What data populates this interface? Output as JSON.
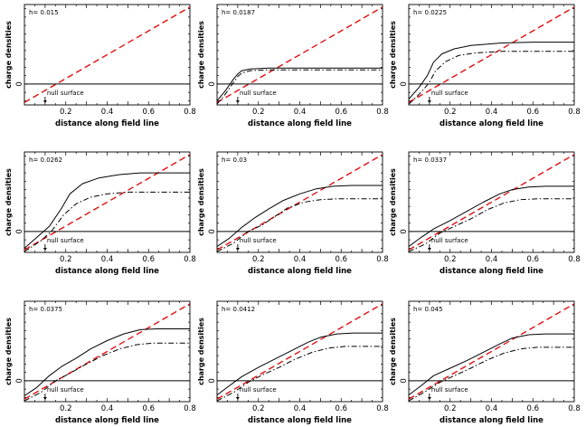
{
  "chart_data": [
    {
      "type": "line",
      "title": "",
      "annotation": "h= 0.015",
      "xlabel": "distance along field line",
      "ylabel": "charge densities",
      "xlim": [
        0,
        0.8
      ],
      "ylim": [
        -0.25,
        0.95
      ],
      "xticks": [
        "0.2",
        "0.4",
        "0.6",
        "0.8"
      ],
      "yticks": [
        "0"
      ],
      "null_surface_label": "null surface",
      "null_surface_x": 0.1,
      "series": [
        {
          "style": "dashed-red",
          "x": [
            0,
            0.8
          ],
          "y": [
            -0.22,
            0.92
          ]
        },
        {
          "style": "solid-black",
          "x": [
            0,
            0.8
          ],
          "y": [
            0,
            0
          ]
        }
      ]
    },
    {
      "type": "line",
      "title": "",
      "annotation": "h= 0.0187",
      "xlabel": "distance along field line",
      "ylabel": "charge densities",
      "xlim": [
        0,
        0.8
      ],
      "ylim": [
        -0.25,
        0.95
      ],
      "xticks": [
        "0.2",
        "0.4",
        "0.6",
        "0.8"
      ],
      "yticks": [
        "0"
      ],
      "null_surface_label": "null surface",
      "null_surface_x": 0.1,
      "series": [
        {
          "style": "dashed-red",
          "x": [
            0,
            0.8
          ],
          "y": [
            -0.22,
            0.92
          ]
        },
        {
          "style": "solid-black",
          "x": [
            0,
            0.8
          ],
          "y": [
            0,
            0
          ]
        },
        {
          "style": "solid-black",
          "x": [
            0,
            0.04,
            0.08,
            0.1,
            0.12,
            0.16,
            0.25,
            0.4,
            0.6,
            0.8
          ],
          "y": [
            -0.2,
            -0.08,
            0.06,
            0.12,
            0.16,
            0.18,
            0.19,
            0.19,
            0.19,
            0.19
          ]
        },
        {
          "style": "dashdot-black",
          "x": [
            0,
            0.04,
            0.08,
            0.1,
            0.12,
            0.16,
            0.25,
            0.4,
            0.6,
            0.8
          ],
          "y": [
            -0.24,
            -0.12,
            0.02,
            0.09,
            0.13,
            0.16,
            0.17,
            0.17,
            0.17,
            0.17
          ]
        }
      ]
    },
    {
      "type": "line",
      "title": "",
      "annotation": "h= 0.0225",
      "xlabel": "distance along field line",
      "ylabel": "charge densities",
      "xlim": [
        0,
        0.8
      ],
      "ylim": [
        -0.25,
        0.95
      ],
      "xticks": [
        "0.2",
        "0.4",
        "0.6",
        "0.8"
      ],
      "yticks": [
        "0"
      ],
      "null_surface_label": "null surface",
      "null_surface_x": 0.1,
      "series": [
        {
          "style": "dashed-red",
          "x": [
            0,
            0.8
          ],
          "y": [
            -0.22,
            0.92
          ]
        },
        {
          "style": "solid-black",
          "x": [
            0,
            0.8
          ],
          "y": [
            0,
            0
          ]
        },
        {
          "style": "solid-black",
          "x": [
            0,
            0.05,
            0.09,
            0.12,
            0.16,
            0.22,
            0.3,
            0.45,
            0.6,
            0.8
          ],
          "y": [
            -0.18,
            -0.04,
            0.1,
            0.26,
            0.36,
            0.42,
            0.46,
            0.49,
            0.5,
            0.5
          ]
        },
        {
          "style": "dashdot-black",
          "x": [
            0,
            0.06,
            0.1,
            0.13,
            0.18,
            0.24,
            0.32,
            0.45,
            0.6,
            0.8
          ],
          "y": [
            -0.24,
            -0.1,
            0.02,
            0.16,
            0.27,
            0.34,
            0.37,
            0.39,
            0.39,
            0.39
          ]
        }
      ]
    },
    {
      "type": "line",
      "title": "",
      "annotation": "h= 0.0262",
      "xlabel": "distance along field line",
      "ylabel": "charge densities",
      "xlim": [
        0,
        0.8
      ],
      "ylim": [
        -0.25,
        0.95
      ],
      "xticks": [
        "0.2",
        "0.4",
        "0.6",
        "0.8"
      ],
      "yticks": [
        "0"
      ],
      "null_surface_label": "null surface",
      "null_surface_x": 0.1,
      "series": [
        {
          "style": "dashed-red",
          "x": [
            0,
            0.8
          ],
          "y": [
            -0.22,
            0.92
          ]
        },
        {
          "style": "solid-black",
          "x": [
            0,
            0.8
          ],
          "y": [
            0,
            0
          ]
        },
        {
          "style": "solid-black",
          "x": [
            0,
            0.06,
            0.12,
            0.18,
            0.22,
            0.28,
            0.36,
            0.46,
            0.56,
            0.65,
            0.8
          ],
          "y": [
            -0.2,
            -0.07,
            0.06,
            0.28,
            0.45,
            0.57,
            0.64,
            0.68,
            0.7,
            0.7,
            0.7
          ]
        },
        {
          "style": "dashdot-black",
          "x": [
            0,
            0.08,
            0.13,
            0.19,
            0.25,
            0.32,
            0.4,
            0.5,
            0.6,
            0.8
          ],
          "y": [
            -0.24,
            -0.11,
            0.0,
            0.2,
            0.33,
            0.41,
            0.45,
            0.47,
            0.47,
            0.47
          ]
        }
      ]
    },
    {
      "type": "line",
      "title": "",
      "annotation": "h= 0.03",
      "xlabel": "distance along field line",
      "ylabel": "charge densities",
      "xlim": [
        0,
        0.8
      ],
      "ylim": [
        -0.25,
        0.95
      ],
      "xticks": [
        "0.2",
        "0.4",
        "0.6",
        "0.8"
      ],
      "yticks": [
        "0"
      ],
      "null_surface_label": "null surface",
      "null_surface_x": 0.1,
      "series": [
        {
          "style": "dashed-red",
          "x": [
            0,
            0.8
          ],
          "y": [
            -0.22,
            0.92
          ]
        },
        {
          "style": "solid-black",
          "x": [
            0,
            0.8
          ],
          "y": [
            0,
            0
          ]
        },
        {
          "style": "solid-black",
          "x": [
            0,
            0.06,
            0.12,
            0.18,
            0.25,
            0.32,
            0.4,
            0.48,
            0.56,
            0.65,
            0.8
          ],
          "y": [
            -0.18,
            -0.08,
            0.05,
            0.16,
            0.27,
            0.37,
            0.45,
            0.51,
            0.54,
            0.55,
            0.55
          ]
        },
        {
          "style": "dashdot-black",
          "x": [
            0,
            0.08,
            0.15,
            0.22,
            0.28,
            0.34,
            0.42,
            0.5,
            0.58,
            0.8
          ],
          "y": [
            -0.24,
            -0.14,
            0.0,
            0.08,
            0.18,
            0.28,
            0.35,
            0.38,
            0.39,
            0.39
          ]
        }
      ]
    },
    {
      "type": "line",
      "title": "",
      "annotation": "h= 0.0337",
      "xlabel": "distance along field line",
      "ylabel": "charge densities",
      "xlim": [
        0,
        0.8
      ],
      "ylim": [
        -0.25,
        0.95
      ],
      "xticks": [
        "0.2",
        "0.4",
        "0.6",
        "0.8"
      ],
      "yticks": [
        "0"
      ],
      "null_surface_label": "null surface",
      "null_surface_x": 0.1,
      "series": [
        {
          "style": "dashed-red",
          "x": [
            0,
            0.8
          ],
          "y": [
            -0.22,
            0.92
          ]
        },
        {
          "style": "solid-black",
          "x": [
            0,
            0.8
          ],
          "y": [
            0,
            0
          ]
        },
        {
          "style": "solid-black",
          "x": [
            0,
            0.06,
            0.12,
            0.2,
            0.28,
            0.36,
            0.44,
            0.5,
            0.58,
            0.66,
            0.8
          ],
          "y": [
            -0.18,
            -0.07,
            0.03,
            0.13,
            0.24,
            0.35,
            0.45,
            0.5,
            0.53,
            0.54,
            0.54
          ]
        },
        {
          "style": "dashdot-black",
          "x": [
            0,
            0.08,
            0.15,
            0.22,
            0.3,
            0.38,
            0.46,
            0.54,
            0.62,
            0.8
          ],
          "y": [
            -0.24,
            -0.15,
            -0.02,
            0.06,
            0.15,
            0.26,
            0.34,
            0.38,
            0.39,
            0.39
          ]
        }
      ]
    },
    {
      "type": "line",
      "title": "",
      "annotation": "h= 0.0375",
      "xlabel": "distance along field line",
      "ylabel": "charge densities",
      "xlim": [
        0,
        0.8
      ],
      "ylim": [
        -0.25,
        0.95
      ],
      "xticks": [
        "0.2",
        "0.4",
        "0.6",
        "0.8"
      ],
      "yticks": [
        "0"
      ],
      "null_surface_label": "null surface",
      "null_surface_x": 0.1,
      "series": [
        {
          "style": "dashed-red",
          "x": [
            0,
            0.8
          ],
          "y": [
            -0.22,
            0.92
          ]
        },
        {
          "style": "solid-black",
          "x": [
            0,
            0.8
          ],
          "y": [
            0,
            0
          ]
        },
        {
          "style": "solid-black",
          "x": [
            0,
            0.06,
            0.12,
            0.18,
            0.25,
            0.32,
            0.4,
            0.48,
            0.56,
            0.64,
            0.8
          ],
          "y": [
            -0.18,
            -0.08,
            0.06,
            0.17,
            0.27,
            0.38,
            0.48,
            0.56,
            0.61,
            0.62,
            0.62
          ]
        },
        {
          "style": "dashdot-black",
          "x": [
            0,
            0.08,
            0.15,
            0.22,
            0.3,
            0.38,
            0.46,
            0.54,
            0.62,
            0.8
          ],
          "y": [
            -0.24,
            -0.14,
            0.0,
            0.09,
            0.2,
            0.3,
            0.38,
            0.43,
            0.45,
            0.45
          ]
        }
      ]
    },
    {
      "type": "line",
      "title": "",
      "annotation": "h= 0.0412",
      "xlabel": "distance along field line",
      "ylabel": "charge densities",
      "xlim": [
        0,
        0.8
      ],
      "ylim": [
        -0.25,
        0.95
      ],
      "xticks": [
        "0.2",
        "0.4",
        "0.6",
        "0.8"
      ],
      "yticks": [
        "0"
      ],
      "null_surface_label": "null surface",
      "null_surface_x": 0.1,
      "series": [
        {
          "style": "dashed-red",
          "x": [
            0,
            0.8
          ],
          "y": [
            -0.22,
            0.92
          ]
        },
        {
          "style": "solid-black",
          "x": [
            0,
            0.8
          ],
          "y": [
            0,
            0
          ]
        },
        {
          "style": "solid-black",
          "x": [
            0,
            0.06,
            0.12,
            0.2,
            0.28,
            0.36,
            0.44,
            0.5,
            0.58,
            0.66,
            0.8
          ],
          "y": [
            -0.17,
            -0.06,
            0.05,
            0.16,
            0.26,
            0.36,
            0.46,
            0.52,
            0.56,
            0.57,
            0.57
          ]
        },
        {
          "style": "dashdot-black",
          "x": [
            0,
            0.08,
            0.15,
            0.22,
            0.3,
            0.38,
            0.46,
            0.54,
            0.62,
            0.8
          ],
          "y": [
            -0.24,
            -0.14,
            -0.02,
            0.07,
            0.16,
            0.26,
            0.34,
            0.39,
            0.41,
            0.41
          ]
        }
      ]
    },
    {
      "type": "line",
      "title": "",
      "annotation": "h= 0.045",
      "xlabel": "distance along field line",
      "ylabel": "charge densities",
      "xlim": [
        0,
        0.8
      ],
      "ylim": [
        -0.25,
        0.95
      ],
      "xticks": [
        "0.2",
        "0.4",
        "0.6",
        "0.8"
      ],
      "yticks": [
        "0"
      ],
      "null_surface_label": "null surface",
      "null_surface_x": 0.1,
      "series": [
        {
          "style": "dashed-red",
          "x": [
            0,
            0.8
          ],
          "y": [
            -0.22,
            0.92
          ]
        },
        {
          "style": "solid-black",
          "x": [
            0,
            0.8
          ],
          "y": [
            0,
            0
          ]
        },
        {
          "style": "solid-black",
          "x": [
            0,
            0.06,
            0.12,
            0.2,
            0.28,
            0.36,
            0.44,
            0.5,
            0.58,
            0.66,
            0.8
          ],
          "y": [
            -0.17,
            -0.06,
            0.06,
            0.15,
            0.24,
            0.34,
            0.44,
            0.51,
            0.55,
            0.56,
            0.56
          ]
        },
        {
          "style": "dashdot-black",
          "x": [
            0,
            0.08,
            0.15,
            0.22,
            0.3,
            0.38,
            0.46,
            0.54,
            0.62,
            0.8
          ],
          "y": [
            -0.24,
            -0.13,
            -0.02,
            0.06,
            0.15,
            0.25,
            0.33,
            0.38,
            0.4,
            0.4
          ]
        }
      ]
    }
  ]
}
